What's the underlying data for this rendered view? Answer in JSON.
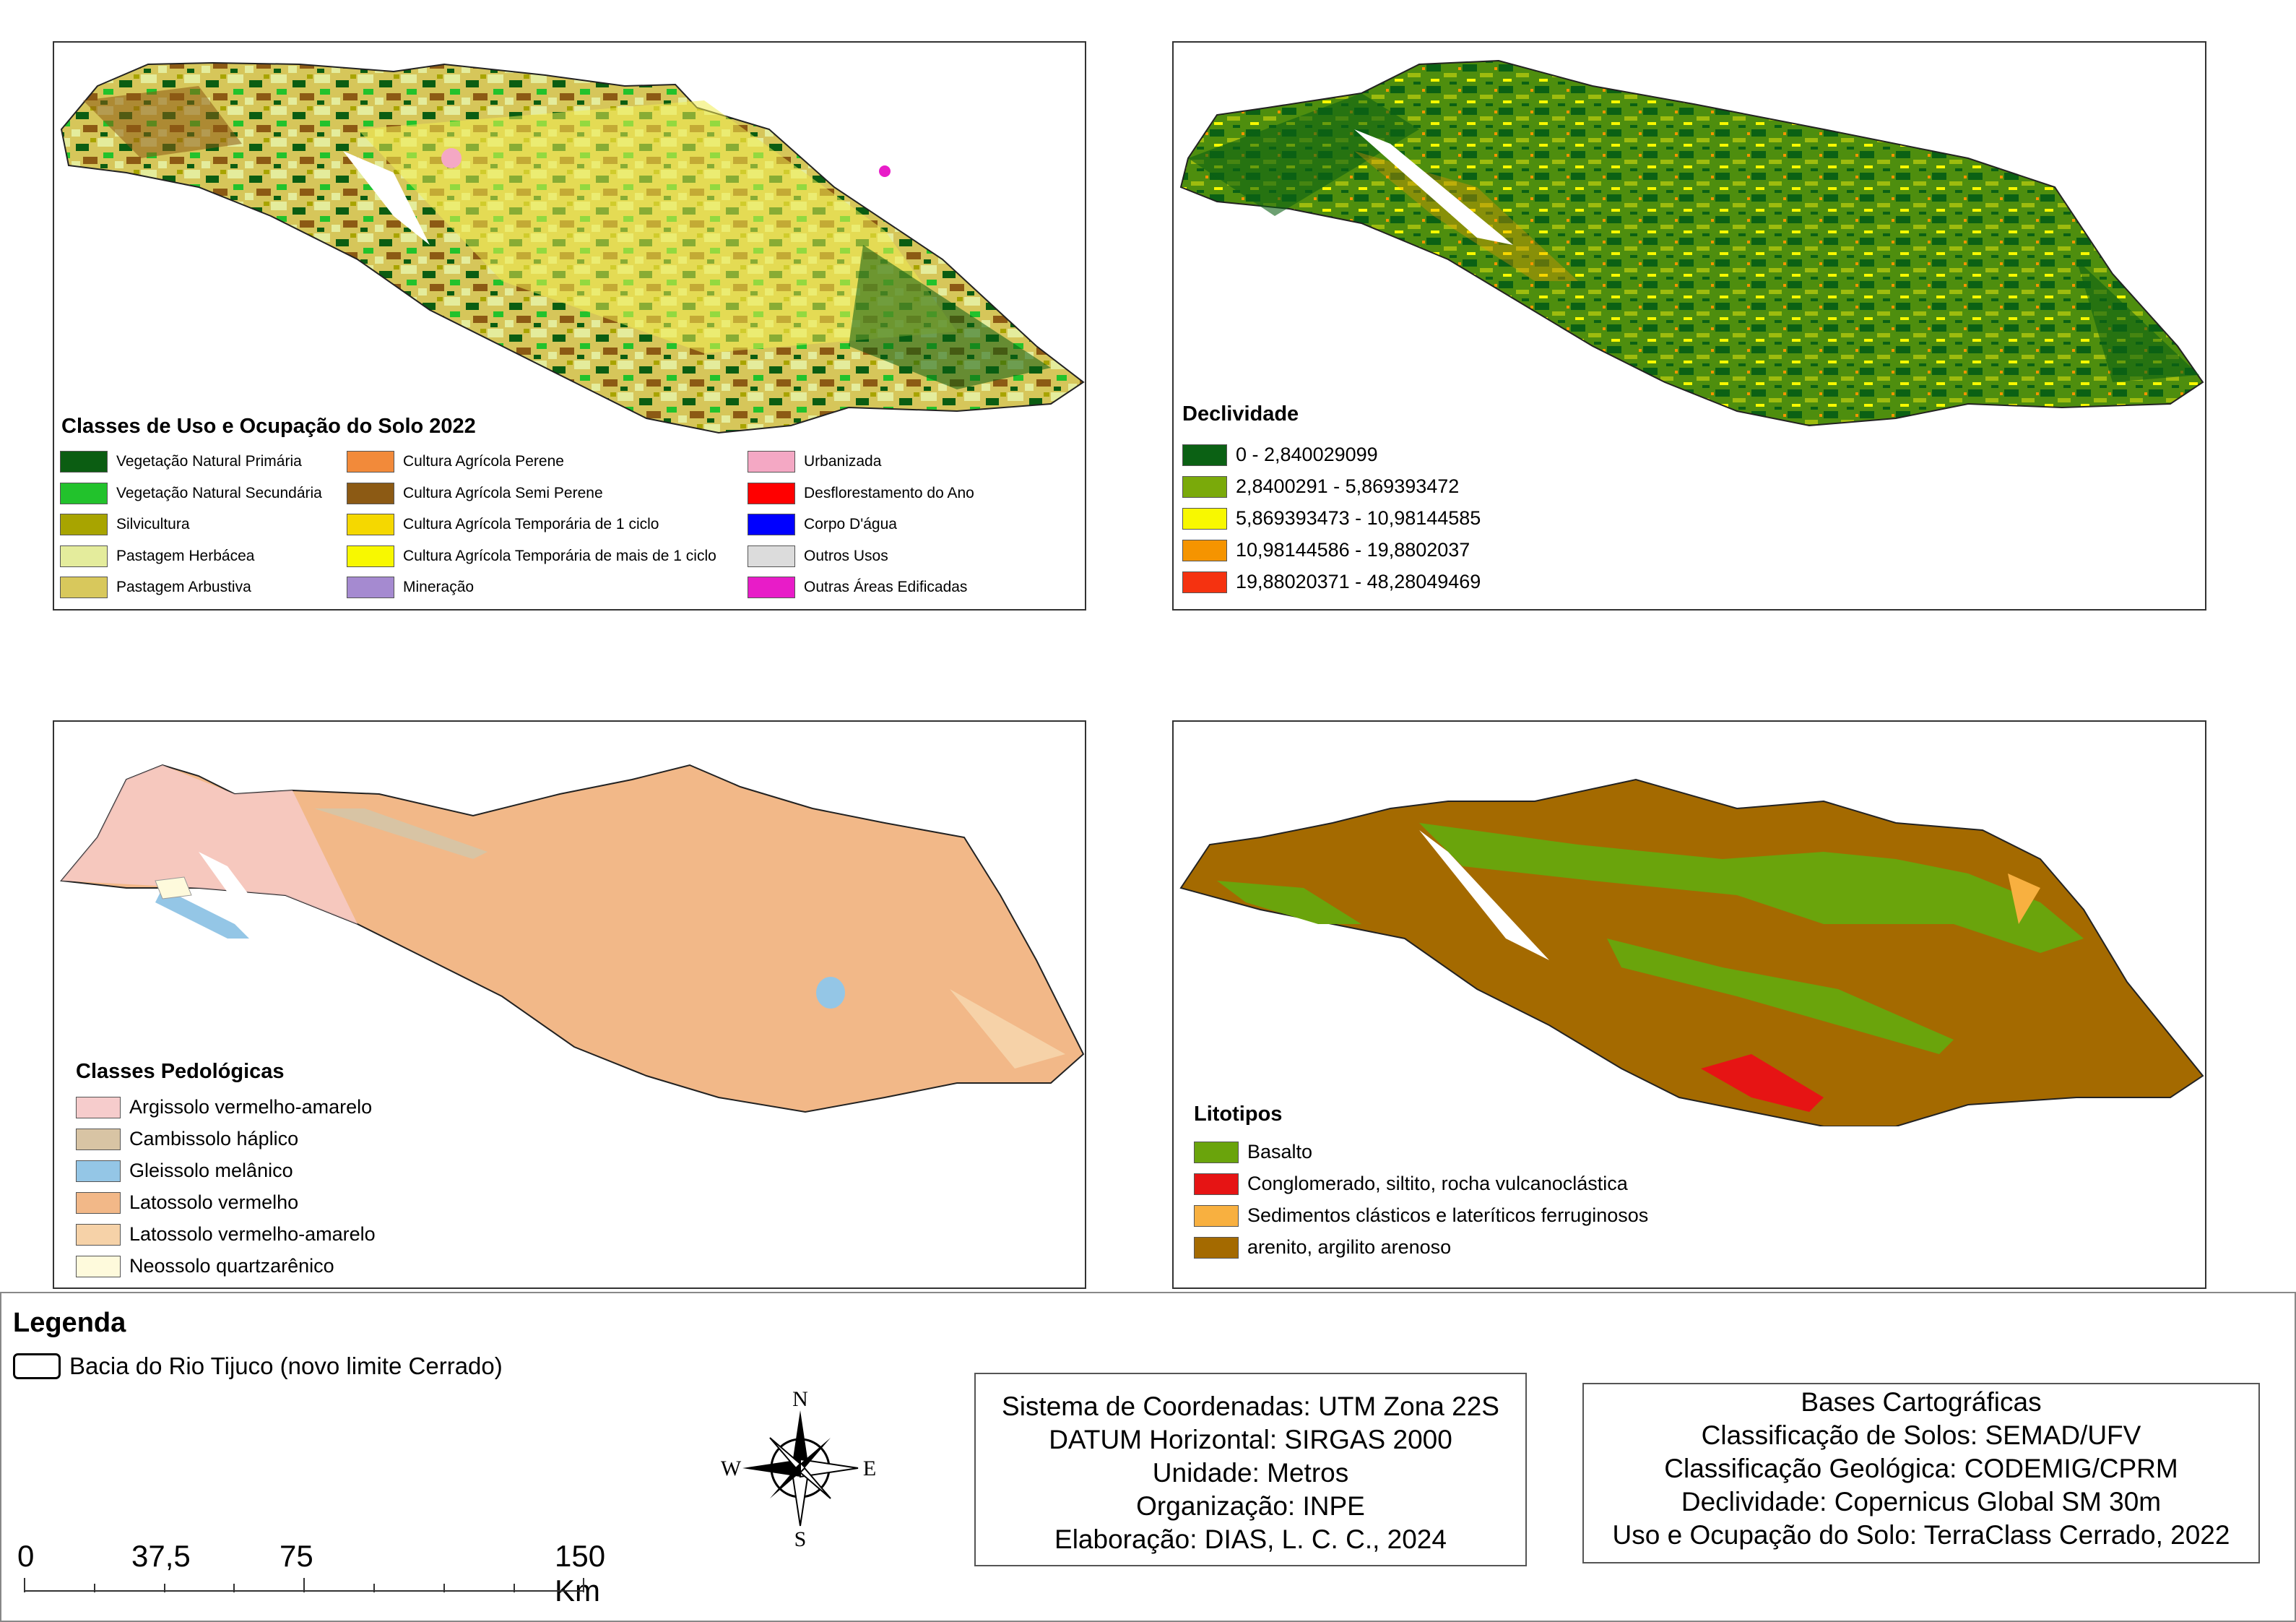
{
  "panels": {
    "land_use": {
      "title": "Classes de Uso e Ocupação do Solo 2022",
      "classes": [
        {
          "label": "Vegetação Natural Primária",
          "color": "#0b5d12"
        },
        {
          "label": "Vegetação Natural Secundária",
          "color": "#22c22c"
        },
        {
          "label": "Silvicultura",
          "color": "#a8a400"
        },
        {
          "label": "Pastagem Herbácea",
          "color": "#e4ec9c"
        },
        {
          "label": "Pastagem Arbustiva",
          "color": "#d8c85c"
        },
        {
          "label": "Cultura Agrícola Perene",
          "color": "#f28a3a"
        },
        {
          "label": "Cultura Agrícola Semi Perene",
          "color": "#8c5a14"
        },
        {
          "label": "Cultura Agrícola Temporária de 1 ciclo",
          "color": "#f5d800"
        },
        {
          "label": "Cultura Agrícola Temporária de mais de 1 ciclo",
          "color": "#f8f800"
        },
        {
          "label": "Mineração",
          "color": "#a58ad0"
        },
        {
          "label": "Urbanizada",
          "color": "#f4a8c4"
        },
        {
          "label": "Desflorestamento do Ano",
          "color": "#ff0000"
        },
        {
          "label": "Corpo D'água",
          "color": "#0000ff"
        },
        {
          "label": "Outros Usos",
          "color": "#dcdcdc"
        },
        {
          "label": "Outras Áreas Edificadas",
          "color": "#e81cc8"
        }
      ]
    },
    "slope": {
      "title": "Declividade",
      "classes": [
        {
          "label": "0 - 2,840029099",
          "color": "#0b6114"
        },
        {
          "label": "2,8400291 - 5,869393472",
          "color": "#7aaa0a"
        },
        {
          "label": "5,869393473 - 10,98144585",
          "color": "#f8f800"
        },
        {
          "label": "10,98144586 - 19,8802037",
          "color": "#f59400"
        },
        {
          "label": "19,88020371 - 48,28049469",
          "color": "#f53210"
        }
      ]
    },
    "soils": {
      "title": "Classes Pedológicas",
      "classes": [
        {
          "label": "Argissolo vermelho-amarelo",
          "color": "#f6cccc"
        },
        {
          "label": "Cambissolo háplico",
          "color": "#d8c4a4"
        },
        {
          "label": "Gleissolo melânico",
          "color": "#94c6e6"
        },
        {
          "label": "Latossolo vermelho",
          "color": "#f2b888"
        },
        {
          "label": "Latossolo vermelho-amarelo",
          "color": "#f6d2a8"
        },
        {
          "label": "Neossolo quartzarênico",
          "color": "#fefadc"
        }
      ]
    },
    "geology": {
      "title": "Litotipos",
      "classes": [
        {
          "label": "Basalto",
          "color": "#6aa40c"
        },
        {
          "label": "Conglomerado, siltito, rocha vulcanoclástica",
          "color": "#e61414"
        },
        {
          "label": "Sedimentos clásticos e lateríticos ferruginosos",
          "color": "#f8b040"
        },
        {
          "label": "arenito, argilito arenoso",
          "color": "#a46a00"
        }
      ]
    }
  },
  "legend": {
    "title": "Legenda",
    "item": "Bacia do Rio Tijuco (novo limite Cerrado)"
  },
  "compass": {
    "n": "N",
    "s": "S",
    "e": "E",
    "w": "W"
  },
  "scale_bar": {
    "labels": [
      "0",
      "37,5",
      "75",
      "150 Km"
    ]
  },
  "coordinate_box": {
    "lines": [
      "Sistema de Coordenadas: UTM Zona 22S",
      "DATUM Horizontal: SIRGAS 2000",
      "Unidade: Metros",
      "Organização: INPE",
      "Elaboração: DIAS, L. C. C., 2024"
    ]
  },
  "sources_box": {
    "lines": [
      "Bases Cartográficas",
      "Classificação de Solos: SEMAD/UFV",
      "Classificação Geológica: CODEMIG/CPRM",
      "Declividade: Copernicus Global SM 30m",
      "Uso e Ocupação do Solo: TerraClass Cerrado, 2022"
    ]
  },
  "colors": {
    "panel_border": "#333333"
  }
}
